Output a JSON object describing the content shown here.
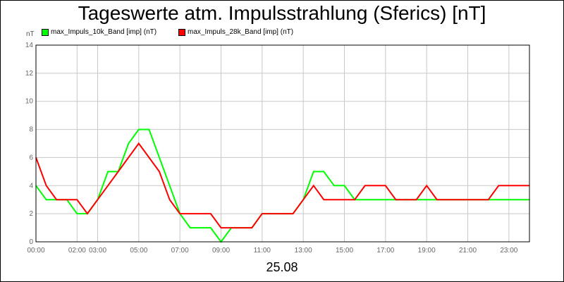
{
  "chart_data": {
    "type": "line",
    "title": "Tageswerte atm. Impulsstrahlung (Sferics) [nT]",
    "unit_label": "nT",
    "date_label": "25.08",
    "ylim": [
      0,
      14
    ],
    "y_ticks": [
      "0",
      "2",
      "4",
      "6",
      "8",
      "10",
      "12",
      "14"
    ],
    "x_tick_labels": [
      "00:00",
      "02:00",
      "03:00",
      "05:00",
      "07:00",
      "09:00",
      "11:00",
      "13:00",
      "15:00",
      "17:00",
      "19:00",
      "21:00",
      "23:00"
    ],
    "x_tick_hours": [
      0,
      2,
      3,
      5,
      7,
      9,
      11,
      13,
      15,
      17,
      19,
      21,
      23
    ],
    "xlim_hours": [
      0,
      24
    ],
    "grid": true,
    "legend_position": "top-left",
    "series": [
      {
        "name": "max_Impuls_10k_Band [imp] (nT)",
        "color": "#00ff00",
        "x_hours": [
          0,
          0.5,
          1,
          1.5,
          2,
          2.5,
          3,
          3.5,
          4,
          4.5,
          5,
          5.5,
          6,
          6.5,
          7,
          7.5,
          8,
          8.5,
          9,
          9.5,
          10,
          10.5,
          11,
          11.5,
          12,
          12.5,
          13,
          13.5,
          14,
          14.5,
          15,
          15.5,
          16,
          16.5,
          17,
          17.5,
          18,
          18.5,
          19,
          19.5,
          20,
          20.5,
          21,
          21.5,
          22,
          22.5,
          23,
          23.5,
          24
        ],
        "values": [
          4,
          3,
          3,
          3,
          2,
          2,
          3,
          5,
          5,
          7,
          8,
          8,
          6,
          4,
          2,
          1,
          1,
          1,
          0,
          1,
          1,
          1,
          2,
          2,
          2,
          2,
          3,
          5,
          5,
          4,
          4,
          3,
          3,
          3,
          3,
          3,
          3,
          3,
          3,
          3,
          3,
          3,
          3,
          3,
          3,
          3,
          3,
          3,
          3
        ]
      },
      {
        "name": "max_Impuls_28k_Band [imp] (nT)",
        "color": "#ff0000",
        "x_hours": [
          0,
          0.5,
          1,
          1.5,
          2,
          2.5,
          3,
          3.5,
          4,
          4.5,
          5,
          5.5,
          6,
          6.5,
          7,
          7.5,
          8,
          8.5,
          9,
          9.5,
          10,
          10.5,
          11,
          11.5,
          12,
          12.5,
          13,
          13.5,
          14,
          14.5,
          15,
          15.5,
          16,
          16.5,
          17,
          17.5,
          18,
          18.5,
          19,
          19.5,
          20,
          20.5,
          21,
          21.5,
          22,
          22.5,
          23,
          23.5,
          24
        ],
        "values": [
          6,
          4,
          3,
          3,
          3,
          2,
          3,
          4,
          5,
          6,
          7,
          6,
          5,
          3,
          2,
          2,
          2,
          2,
          1,
          1,
          1,
          1,
          2,
          2,
          2,
          2,
          3,
          4,
          3,
          3,
          3,
          3,
          4,
          4,
          4,
          3,
          3,
          3,
          4,
          3,
          3,
          3,
          3,
          3,
          3,
          4,
          4,
          4,
          4
        ]
      }
    ]
  }
}
